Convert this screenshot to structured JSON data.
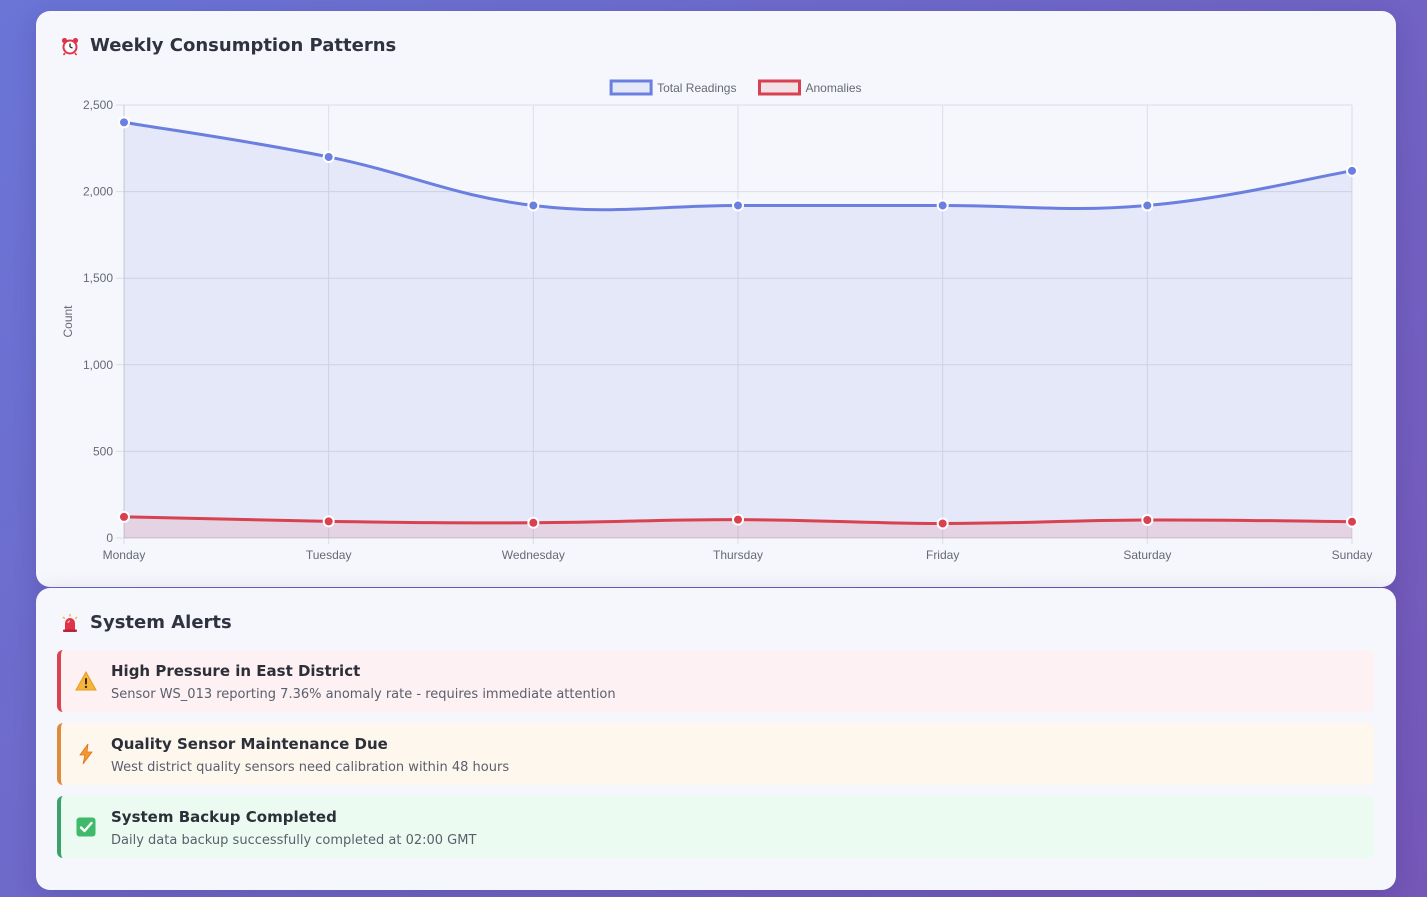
{
  "colors": {
    "total": "#6a7fe0",
    "anomalies": "#d8414f",
    "critical_border": "#d94450",
    "critical_bg": "#fdf1f3",
    "warning_border": "#e08a3c",
    "warning_bg": "#fdf7ee",
    "success_border": "#3aa36b",
    "success_bg": "#ebfbf1"
  },
  "consumption": {
    "title": "Weekly Consumption Patterns",
    "icon": "alarm-clock-icon"
  },
  "chart_data": {
    "type": "line",
    "categories": [
      "Monday",
      "Tuesday",
      "Wednesday",
      "Thursday",
      "Friday",
      "Saturday",
      "Sunday"
    ],
    "series": [
      {
        "name": "Total Readings",
        "values": [
          2400,
          2200,
          1920,
          1920,
          1920,
          1920,
          2120
        ],
        "fill": true
      },
      {
        "name": "Anomalies",
        "values": [
          122,
          96,
          88,
          106,
          84,
          104,
          94
        ],
        "fill": true
      }
    ],
    "ylabel": "Count",
    "xlabel": "",
    "ylim": [
      0,
      2500
    ],
    "yticks": [
      0,
      500,
      1000,
      1500,
      2000,
      2500
    ],
    "ytick_labels": [
      "0",
      "500",
      "1,000",
      "1,500",
      "2,000",
      "2,500"
    ],
    "grid": true,
    "legend": "top-center"
  },
  "alerts": {
    "title": "System Alerts",
    "icon": "siren-icon",
    "items": [
      {
        "severity": "critical",
        "icon": "warning-icon",
        "title": "High Pressure in East District",
        "message": "Sensor WS_013 reporting 7.36% anomaly rate - requires immediate attention"
      },
      {
        "severity": "warning",
        "icon": "lightning-icon",
        "title": "Quality Sensor Maintenance Due",
        "message": "West district quality sensors need calibration within 48 hours"
      },
      {
        "severity": "success",
        "icon": "check-icon",
        "title": "System Backup Completed",
        "message": "Daily data backup successfully completed at 02:00 GMT"
      }
    ]
  }
}
